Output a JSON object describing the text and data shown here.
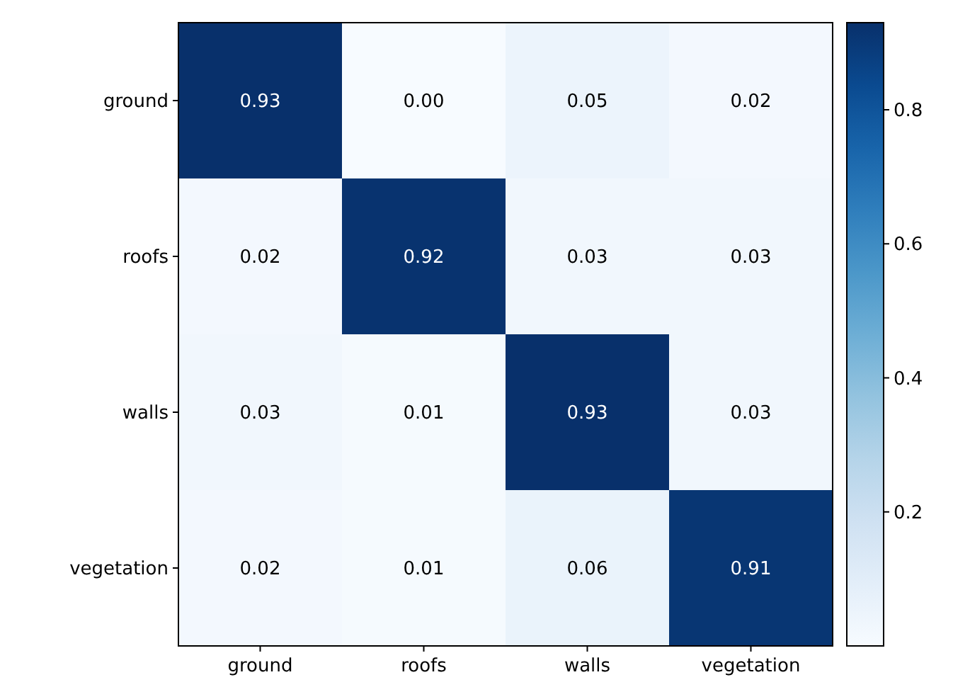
{
  "chart_data": {
    "type": "heatmap",
    "categories": [
      "ground",
      "roofs",
      "walls",
      "vegetation"
    ],
    "y_categories": [
      "ground",
      "roofs",
      "walls",
      "vegetation"
    ],
    "cells": [
      [
        0.93,
        0.0,
        0.05,
        0.02
      ],
      [
        0.02,
        0.92,
        0.03,
        0.03
      ],
      [
        0.03,
        0.01,
        0.93,
        0.03
      ],
      [
        0.02,
        0.01,
        0.06,
        0.91
      ]
    ],
    "cell_labels": [
      [
        "0.93",
        "0.00",
        "0.05",
        "0.02"
      ],
      [
        "0.02",
        "0.92",
        "0.03",
        "0.03"
      ],
      [
        "0.03",
        "0.01",
        "0.93",
        "0.03"
      ],
      [
        "0.02",
        "0.01",
        "0.06",
        "0.91"
      ]
    ],
    "data_labels": true,
    "clim": [
      0,
      0.93
    ],
    "cticks": [
      0.2,
      0.4,
      0.6,
      0.8
    ]
  }
}
